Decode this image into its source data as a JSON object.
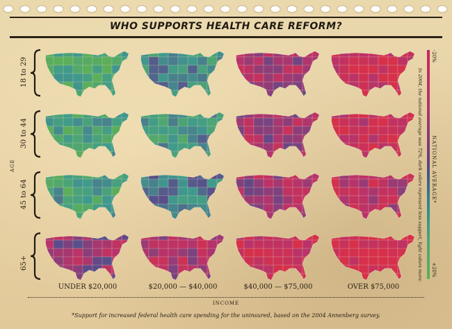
{
  "title": "WHO SUPPORTS HEALTH CARE REFORM?",
  "age_axis_label": "AGE",
  "income_axis_label": "INCOME",
  "footnote": "*Support for increased federal health care spending for the uninsured, based on the 2004 Annenberg survey.",
  "legend": {
    "top_label": "-20%",
    "mid_label": "NATIONAL AVERAGE*",
    "bottom_label": "+20%",
    "note": "In 2004, the national average was 72%, dark colors represent less support, light colors more."
  },
  "colors": {
    "most_support": "#5cae5a",
    "high_support": "#3f9a8d",
    "near_average": "#5b4a8a",
    "low_support": "#b8336a",
    "least_support": "#d6304b",
    "ink": "#2a2116"
  },
  "chart_data": {
    "type": "heatmap",
    "title": "WHO SUPPORTS HEALTH CARE REFORM?",
    "rows_label": "AGE",
    "cols_label": "INCOME",
    "rows": [
      "18 to 29",
      "30 to 44",
      "45 to 64",
      "65+"
    ],
    "cols": [
      "UNDER $20,000",
      "$20,000 — $40,000",
      "$40,000 — $75,000",
      "OVER $75,000"
    ],
    "national_average_percent": 72,
    "scale_range": [
      -20,
      20
    ],
    "cell_deviation_from_average": [
      [
        16,
        9,
        -8,
        -16
      ],
      [
        14,
        10,
        -8,
        -15
      ],
      [
        13,
        6,
        -8,
        -12
      ],
      [
        -6,
        -10,
        -16,
        -19
      ]
    ]
  }
}
